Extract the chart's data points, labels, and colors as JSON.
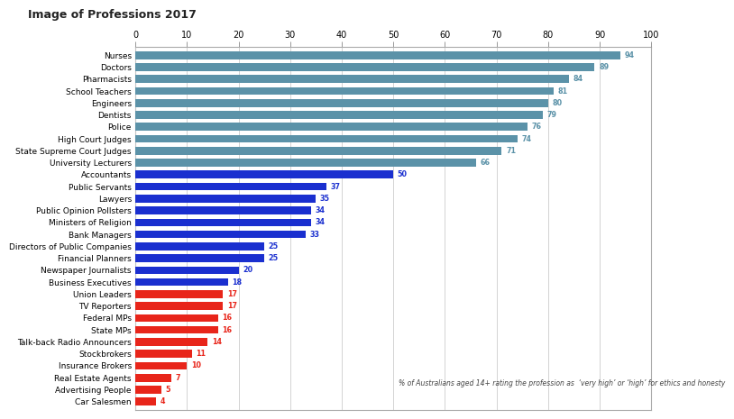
{
  "title": "Image of Professions 2017",
  "footnote": "% of Australians aged 14+ rating the profession as  ‘very high’ or ‘high’ for ethics and honesty",
  "categories": [
    "Car Salesmen",
    "Advertising People",
    "Real Estate Agents",
    "Insurance Brokers",
    "Stockbrokers",
    "Talk-back Radio Announcers",
    "State MPs",
    "Federal MPs",
    "TV Reporters",
    "Union Leaders",
    "Business Executives",
    "Newspaper Journalists",
    "Financial Planners",
    "Directors of Public Companies",
    "Bank Managers",
    "Ministers of Religion",
    "Public Opinion Pollsters",
    "Lawyers",
    "Public Servants",
    "Accountants",
    "University Lecturers",
    "State Supreme Court Judges",
    "High Court Judges",
    "Police",
    "Dentists",
    "Engineers",
    "School Teachers",
    "Pharmacists",
    "Doctors",
    "Nurses"
  ],
  "values": [
    4,
    5,
    7,
    10,
    11,
    14,
    16,
    16,
    17,
    17,
    18,
    20,
    25,
    25,
    33,
    34,
    34,
    35,
    37,
    50,
    66,
    71,
    74,
    76,
    79,
    80,
    81,
    84,
    89,
    94
  ],
  "bar_colors": [
    "#e8251a",
    "#e8251a",
    "#e8251a",
    "#e8251a",
    "#e8251a",
    "#e8251a",
    "#e8251a",
    "#e8251a",
    "#e8251a",
    "#e8251a",
    "#1a2fcf",
    "#1a2fcf",
    "#1a2fcf",
    "#1a2fcf",
    "#1a2fcf",
    "#1a2fcf",
    "#1a2fcf",
    "#1a2fcf",
    "#1a2fcf",
    "#1a2fcf",
    "#5b92a8",
    "#5b92a8",
    "#5b92a8",
    "#5b92a8",
    "#5b92a8",
    "#5b92a8",
    "#5b92a8",
    "#5b92a8",
    "#5b92a8",
    "#5b92a8"
  ],
  "label_colors": [
    "#e8251a",
    "#e8251a",
    "#e8251a",
    "#e8251a",
    "#e8251a",
    "#e8251a",
    "#e8251a",
    "#e8251a",
    "#e8251a",
    "#e8251a",
    "#1a2fcf",
    "#1a2fcf",
    "#1a2fcf",
    "#1a2fcf",
    "#1a2fcf",
    "#1a2fcf",
    "#1a2fcf",
    "#1a2fcf",
    "#1a2fcf",
    "#1a2fcf",
    "#5b92a8",
    "#5b92a8",
    "#5b92a8",
    "#5b92a8",
    "#5b92a8",
    "#5b92a8",
    "#5b92a8",
    "#5b92a8",
    "#5b92a8",
    "#5b92a8"
  ],
  "xlim": [
    0,
    100
  ],
  "xticks": [
    0,
    10,
    20,
    30,
    40,
    50,
    60,
    70,
    80,
    90,
    100
  ],
  "bar_height": 0.65,
  "title_fontsize": 9,
  "tick_fontsize": 7,
  "ylabel_fontsize": 6.5,
  "value_fontsize": 5.8,
  "footnote_fontsize": 5.5,
  "background": "#ffffff",
  "panel_background": "#ffffff",
  "grid_color": "#cccccc",
  "border_color": "#aaaaaa"
}
